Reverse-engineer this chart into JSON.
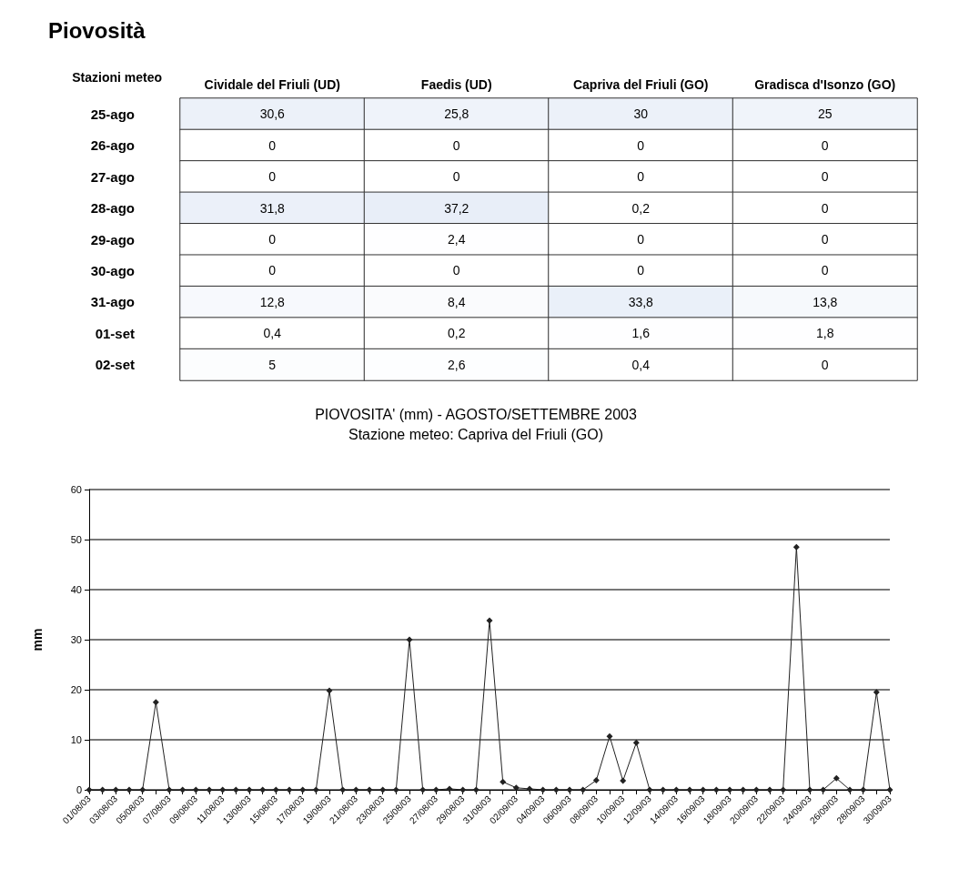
{
  "chart_data": [
    {
      "type": "heatmap",
      "title": "Piovosità",
      "ylabel": "Stazioni meteo",
      "categories": [
        "Cividale del Friuli (UD)",
        "Faedis (UD)",
        "Capriva del Friuli (GO)",
        "Gradisca d'Isonzo (GO)"
      ],
      "y_categories": [
        "25-ago",
        "26-ago",
        "27-ago",
        "28-ago",
        "29-ago",
        "30-ago",
        "31-ago",
        "01-set",
        "02-set"
      ],
      "cells": [
        [
          30.6,
          25.8,
          30,
          25
        ],
        [
          0,
          0,
          0,
          0
        ],
        [
          0,
          0,
          0,
          0
        ],
        [
          31.8,
          37.2,
          0.2,
          0
        ],
        [
          0,
          2.4,
          0,
          0
        ],
        [
          0,
          0,
          0,
          0
        ],
        [
          12.8,
          8.4,
          33.8,
          13.8
        ],
        [
          0.4,
          0.2,
          1.6,
          1.8
        ],
        [
          5,
          2.6,
          0.4,
          0
        ]
      ],
      "cell_labels": [
        [
          "30,6",
          "25,8",
          "30",
          "25"
        ],
        [
          "0",
          "0",
          "0",
          "0"
        ],
        [
          "0",
          "0",
          "0",
          "0"
        ],
        [
          "31,8",
          "37,2",
          "0,2",
          "0"
        ],
        [
          "0",
          "2,4",
          "0",
          "0"
        ],
        [
          "0",
          "0",
          "0",
          "0"
        ],
        [
          "12,8",
          "8,4",
          "33,8",
          "13,8"
        ],
        [
          "0,4",
          "0,2",
          "1,6",
          "1,8"
        ],
        [
          "5",
          "2,6",
          "0,4",
          "0"
        ]
      ]
    },
    {
      "type": "line",
      "title": "PIOVOSITA' (mm) - AGOSTO/SETTEMBRE 2003",
      "subtitle": "Stazione meteo: Capriva del Friuli (GO)",
      "ylabel": "mm",
      "categories": [
        "01/08/03",
        null,
        "03/08/03",
        null,
        "05/08/03",
        null,
        "07/08/03",
        null,
        "09/08/03",
        null,
        "11/08/03",
        null,
        "13/08/03",
        null,
        "15/08/03",
        null,
        "17/08/03",
        null,
        "19/08/03",
        null,
        "21/08/03",
        null,
        "23/08/03",
        null,
        "25/08/03",
        null,
        "27/08/03",
        null,
        "29/08/03",
        null,
        "31/08/03",
        null,
        "02/09/03",
        null,
        "04/09/03",
        null,
        "06/09/03",
        null,
        "08/09/03",
        null,
        "10/09/03",
        null,
        "12/09/03",
        null,
        "14/09/03",
        null,
        "16/09/03",
        null,
        "18/09/03",
        null,
        "20/09/03",
        null,
        "22/09/03",
        null,
        "24/09/03",
        null,
        "26/09/03",
        null,
        "28/09/03",
        null,
        "30/09/03"
      ],
      "series": [
        {
          "color": "#222222",
          "values": [
            0,
            0,
            0,
            0,
            0,
            17.5,
            0,
            0,
            0,
            0,
            0,
            0,
            0,
            0,
            0,
            0,
            0,
            0,
            19.8,
            0,
            0,
            0,
            0,
            0,
            30,
            0,
            0,
            0.2,
            0,
            0,
            33.8,
            1.6,
            0.4,
            0.2,
            0,
            0,
            0,
            0,
            1.9,
            10.7,
            1.8,
            9.4,
            0,
            0,
            0,
            0,
            0,
            0,
            0,
            0,
            0,
            0,
            0,
            48.5,
            0,
            0,
            2.3,
            0,
            0,
            19.5,
            0
          ]
        }
      ],
      "ylim": [
        0,
        60
      ],
      "yticks": [
        0,
        10,
        20,
        30,
        40,
        50,
        60
      ],
      "grid": "y",
      "marker": "diamond"
    }
  ]
}
